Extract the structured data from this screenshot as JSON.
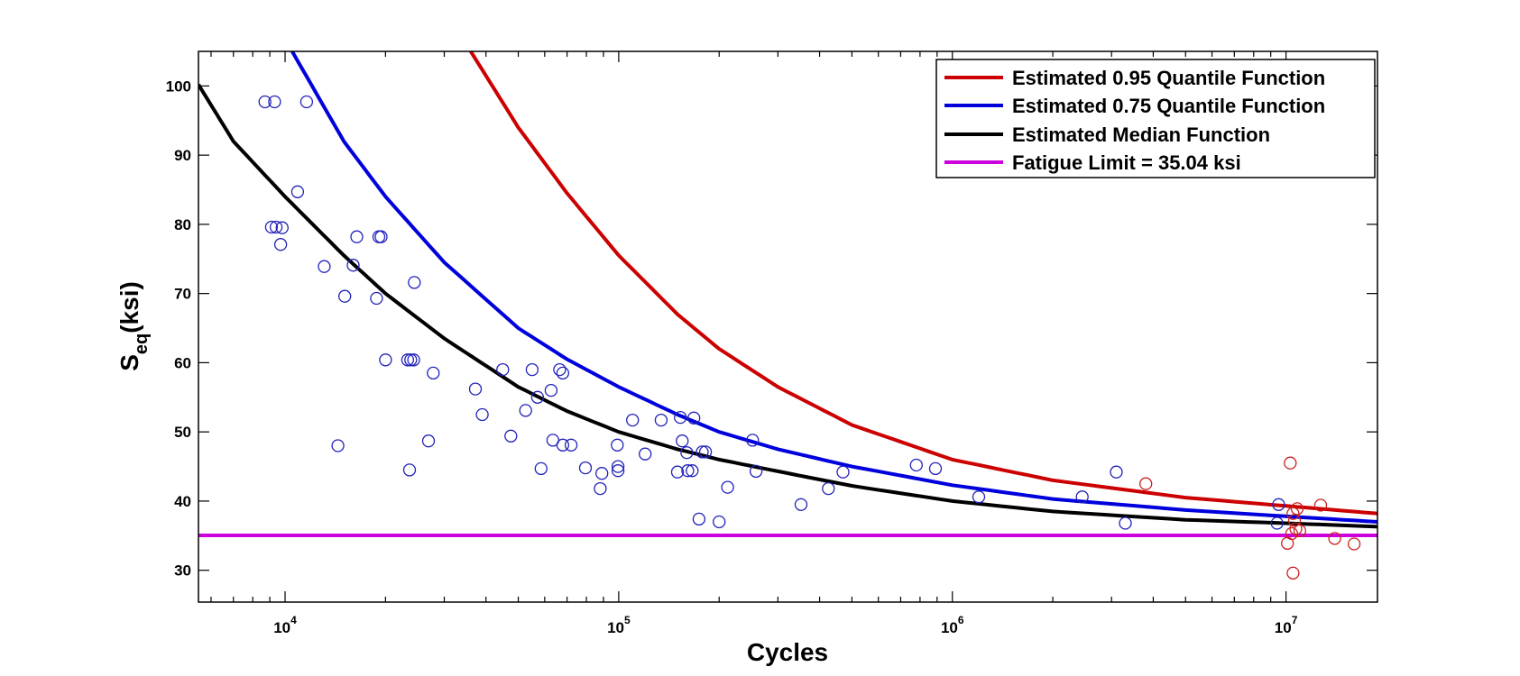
{
  "chart_data": {
    "type": "scatter",
    "title": "",
    "xlabel": "Cycles",
    "ylabel": "S",
    "ylabel_subscript": "eq",
    "ylabel_suffix": "(ksi)",
    "xscale": "log",
    "xlim": [
      5500,
      18800000
    ],
    "ylim": [
      25.4,
      105
    ],
    "grid": false,
    "legend_position": "top-right",
    "yticks": [
      30,
      40,
      50,
      60,
      70,
      80,
      90,
      100
    ],
    "xticks": [
      {
        "value": 10000,
        "base": "10",
        "exp": "4"
      },
      {
        "value": 100000,
        "base": "10",
        "exp": "5"
      },
      {
        "value": 1000000,
        "base": "10",
        "exp": "6"
      },
      {
        "value": 10000000,
        "base": "10",
        "exp": "7"
      }
    ],
    "legend": [
      {
        "label": "Estimated 0.95 Quantile Function",
        "color": "#cc0000"
      },
      {
        "label": "Estimated 0.75 Quantile Function",
        "color": "#0000dd"
      },
      {
        "label": "Estimated Median Function",
        "color": "#000000"
      },
      {
        "label": "Fatigue Limit = 35.04 ksi",
        "color": "#cc00dd"
      }
    ],
    "fatigue_limit": 35.04,
    "series": [
      {
        "name": "Estimated 0.95 Quantile Function",
        "kind": "line",
        "color": "#cc0000",
        "x": [
          36000,
          50000,
          70000,
          100000,
          150000,
          200000,
          300000,
          500000,
          1000000,
          2000000,
          5000000,
          10000000,
          18800000
        ],
        "y": [
          105,
          94,
          84.5,
          75.5,
          67,
          62,
          56.5,
          51,
          46,
          43,
          40.5,
          39.3,
          38.2
        ]
      },
      {
        "name": "Estimated 0.75 Quantile Function",
        "kind": "line",
        "color": "#0000dd",
        "x": [
          10500,
          15000,
          20000,
          30000,
          50000,
          70000,
          100000,
          150000,
          200000,
          300000,
          500000,
          1000000,
          2000000,
          5000000,
          10000000,
          18800000
        ],
        "y": [
          105,
          92,
          84,
          74.5,
          65,
          60.5,
          56.5,
          52.5,
          50,
          47.5,
          45,
          42.3,
          40.3,
          38.7,
          37.8,
          37
        ]
      },
      {
        "name": "Estimated Median Function",
        "kind": "line",
        "color": "#000000",
        "x": [
          5500,
          7000,
          10000,
          15000,
          20000,
          30000,
          50000,
          70000,
          100000,
          150000,
          200000,
          300000,
          500000,
          1000000,
          2000000,
          5000000,
          10000000,
          18800000
        ],
        "y": [
          100.2,
          92,
          84,
          75.5,
          70,
          63.5,
          56.5,
          53,
          50,
          47.5,
          46,
          44.3,
          42.2,
          40,
          38.5,
          37.3,
          36.8,
          36.3
        ]
      },
      {
        "name": "Fatigue Limit = 35.04 ksi",
        "kind": "hline",
        "color": "#cc00dd",
        "y": 35.04
      },
      {
        "name": "Failures",
        "kind": "points",
        "color": "#2222bb",
        "points": [
          [
            8700,
            97.7
          ],
          [
            9300,
            97.7
          ],
          [
            11600,
            97.7
          ],
          [
            10900,
            84.7
          ],
          [
            9100,
            79.6
          ],
          [
            9400,
            79.6
          ],
          [
            9800,
            79.5
          ],
          [
            9700,
            77.1
          ],
          [
            16400,
            78.2
          ],
          [
            19100,
            78.2
          ],
          [
            19400,
            78.2
          ],
          [
            13100,
            73.9
          ],
          [
            16000,
            74.1
          ],
          [
            24400,
            71.6
          ],
          [
            15100,
            69.6
          ],
          [
            18800,
            69.3
          ],
          [
            20000,
            60.4
          ],
          [
            23300,
            60.4
          ],
          [
            23800,
            60.4
          ],
          [
            24300,
            60.4
          ],
          [
            27800,
            58.5
          ],
          [
            14400,
            48.0
          ],
          [
            23600,
            44.5
          ],
          [
            26900,
            48.7
          ],
          [
            37200,
            56.2
          ],
          [
            39000,
            52.5
          ],
          [
            44900,
            59.0
          ],
          [
            47500,
            49.4
          ],
          [
            52600,
            53.1
          ],
          [
            55000,
            59.0
          ],
          [
            57100,
            55.0
          ],
          [
            58500,
            44.7
          ],
          [
            62700,
            56.0
          ],
          [
            63500,
            48.8
          ],
          [
            66500,
            59.0
          ],
          [
            68000,
            58.5
          ],
          [
            68000,
            48.1
          ],
          [
            72000,
            48.1
          ],
          [
            79500,
            44.8
          ],
          [
            88000,
            41.8
          ],
          [
            89000,
            44.0
          ],
          [
            99000,
            48.1
          ],
          [
            99500,
            45.0
          ],
          [
            99500,
            44.4
          ],
          [
            110000,
            51.7
          ],
          [
            120000,
            46.8
          ],
          [
            134000,
            51.7
          ],
          [
            150000,
            44.2
          ],
          [
            153000,
            52.1
          ],
          [
            155000,
            48.7
          ],
          [
            160000,
            47.0
          ],
          [
            161000,
            44.4
          ],
          [
            166000,
            44.4
          ],
          [
            168000,
            52.0
          ],
          [
            174000,
            37.4
          ],
          [
            178000,
            47.1
          ],
          [
            182000,
            47.1
          ],
          [
            200000,
            37.0
          ],
          [
            212000,
            42.0
          ],
          [
            252000,
            48.8
          ],
          [
            258000,
            44.3
          ],
          [
            352000,
            39.5
          ],
          [
            425000,
            41.8
          ],
          [
            470000,
            44.2
          ],
          [
            780000,
            45.2
          ],
          [
            890000,
            44.7
          ],
          [
            1200000,
            40.6
          ],
          [
            2450000,
            40.6
          ],
          [
            3100000,
            44.2
          ],
          [
            3300000,
            36.8
          ],
          [
            9500000,
            39.5
          ],
          [
            9400000,
            36.8
          ]
        ]
      },
      {
        "name": "Runouts",
        "kind": "points",
        "color": "#cc2222",
        "points": [
          [
            3800000,
            42.5
          ],
          [
            10300000,
            45.5
          ],
          [
            10500000,
            38.2
          ],
          [
            10800000,
            38.9
          ],
          [
            10600000,
            37.2
          ],
          [
            10700000,
            36.0
          ],
          [
            11000000,
            35.7
          ],
          [
            10400000,
            35.3
          ],
          [
            10100000,
            33.9
          ],
          [
            12700000,
            39.4
          ],
          [
            14000000,
            34.6
          ],
          [
            16000000,
            33.8
          ],
          [
            10500000,
            29.6
          ]
        ]
      }
    ]
  }
}
